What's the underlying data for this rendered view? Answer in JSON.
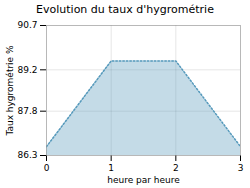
{
  "chart_data": {
    "type": "area",
    "title": "Evolution du taux d'hygrométrie",
    "xlabel": "heure par heure",
    "ylabel": "Taux hygrométrie %",
    "x": [
      0,
      1,
      2,
      3
    ],
    "values": [
      86.6,
      89.5,
      89.5,
      86.6
    ],
    "xlim": [
      0,
      3
    ],
    "ylim": [
      86.3,
      90.7
    ],
    "xticks": [
      0,
      1,
      2,
      3
    ],
    "yticks": [
      86.3,
      87.8,
      89.2,
      90.7
    ],
    "color": "#5599bb",
    "line_style": "dotted",
    "grid": true
  }
}
